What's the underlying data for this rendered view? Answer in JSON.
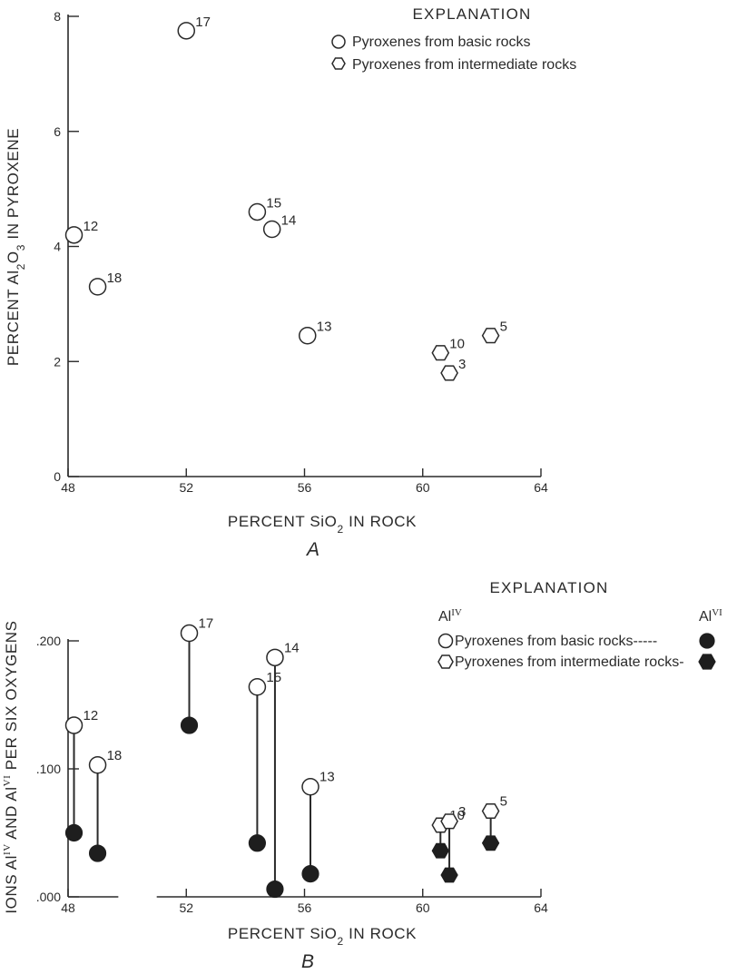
{
  "chart_data": [
    {
      "type": "scatter",
      "panel_label": "A",
      "xlabel": "PERCENT SiO",
      "xlabel_sub": "2",
      "xlabel_rest": " IN ROCK",
      "ylabel": "PERCENT Al",
      "ylabel_sub1": "2",
      "ylabel_mid": "O",
      "ylabel_sub2": "3",
      "ylabel_rest": " IN PYROXENE",
      "xlim": [
        48,
        64
      ],
      "ylim": [
        0,
        8
      ],
      "x_ticks": [
        "48",
        "52",
        "56",
        "60",
        "64"
      ],
      "y_ticks": [
        "0",
        "2",
        "4",
        "6",
        "8"
      ],
      "grid": false,
      "legend_title": "EXPLANATION",
      "legend": [
        {
          "marker": "circle",
          "label": "Pyroxenes from basic rocks"
        },
        {
          "marker": "hexagon",
          "label": "Pyroxenes from intermediate rocks"
        }
      ],
      "series": [
        {
          "name": "Pyroxenes from basic rocks",
          "marker": "circle",
          "points": [
            {
              "label": "17",
              "x": 52.0,
              "y": 7.75
            },
            {
              "label": "15",
              "x": 54.4,
              "y": 4.6
            },
            {
              "label": "14",
              "x": 54.9,
              "y": 4.3
            },
            {
              "label": "12",
              "x": 48.2,
              "y": 4.2
            },
            {
              "label": "18",
              "x": 49.0,
              "y": 3.3
            },
            {
              "label": "13",
              "x": 56.1,
              "y": 2.45
            }
          ]
        },
        {
          "name": "Pyroxenes from intermediate rocks",
          "marker": "hexagon",
          "points": [
            {
              "label": "10",
              "x": 60.6,
              "y": 2.15
            },
            {
              "label": "3",
              "x": 60.9,
              "y": 1.8
            },
            {
              "label": "5",
              "x": 62.3,
              "y": 2.45
            }
          ]
        }
      ]
    },
    {
      "type": "scatter",
      "panel_label": "B",
      "xlabel": "PERCENT SiO",
      "xlabel_sub": "2",
      "xlabel_rest": " IN ROCK",
      "ylabel": "IONS Al",
      "ylabel_sup1": "IV",
      "ylabel_mid": " AND Al",
      "ylabel_sup2": "VI",
      "ylabel_rest": " PER SIX OXYGENS",
      "xlim": [
        48,
        64
      ],
      "ylim": [
        0.0,
        0.2
      ],
      "x_ticks": [
        "48",
        "52",
        "56",
        "60",
        "64"
      ],
      "y_ticks": [
        ".000",
        ".100",
        ".200"
      ],
      "grid": false,
      "legend_title": "EXPLANATION",
      "legend_header_left": "Al",
      "legend_header_left_sup": "IV",
      "legend_header_right": "Al",
      "legend_header_right_sup": "VI",
      "legend": [
        {
          "marker": "circle",
          "label": "Pyroxenes from basic rocks-----"
        },
        {
          "marker": "hexagon",
          "label": "Pyroxenes from intermediate rocks-"
        }
      ],
      "series": [
        {
          "name": "Al IV",
          "fill": "open",
          "points": [
            {
              "label": "12",
              "x": 48.2,
              "y": 0.134,
              "marker": "circle"
            },
            {
              "label": "18",
              "x": 49.0,
              "y": 0.103,
              "marker": "circle"
            },
            {
              "label": "17",
              "x": 52.1,
              "y": 0.206,
              "marker": "circle"
            },
            {
              "label": "15",
              "x": 54.4,
              "y": 0.164,
              "marker": "circle"
            },
            {
              "label": "14",
              "x": 55.0,
              "y": 0.187,
              "marker": "circle"
            },
            {
              "label": "13",
              "x": 56.2,
              "y": 0.086,
              "marker": "circle"
            },
            {
              "label": "10",
              "x": 60.6,
              "y": 0.056,
              "marker": "hexagon"
            },
            {
              "label": "3",
              "x": 60.9,
              "y": 0.059,
              "marker": "hexagon"
            },
            {
              "label": "5",
              "x": 62.3,
              "y": 0.067,
              "marker": "hexagon"
            }
          ]
        },
        {
          "name": "Al VI",
          "fill": "filled",
          "points": [
            {
              "label": "12",
              "x": 48.2,
              "y": 0.05,
              "marker": "circle"
            },
            {
              "label": "18",
              "x": 49.0,
              "y": 0.034,
              "marker": "circle"
            },
            {
              "label": "17",
              "x": 52.1,
              "y": 0.134,
              "marker": "circle"
            },
            {
              "label": "15",
              "x": 54.4,
              "y": 0.042,
              "marker": "circle"
            },
            {
              "label": "14",
              "x": 55.0,
              "y": 0.006,
              "marker": "circle"
            },
            {
              "label": "13",
              "x": 56.2,
              "y": 0.018,
              "marker": "circle"
            },
            {
              "label": "10",
              "x": 60.6,
              "y": 0.036,
              "marker": "hexagon"
            },
            {
              "label": "3",
              "x": 60.9,
              "y": 0.017,
              "marker": "hexagon"
            },
            {
              "label": "5",
              "x": 62.3,
              "y": 0.042,
              "marker": "hexagon"
            }
          ]
        }
      ]
    }
  ]
}
